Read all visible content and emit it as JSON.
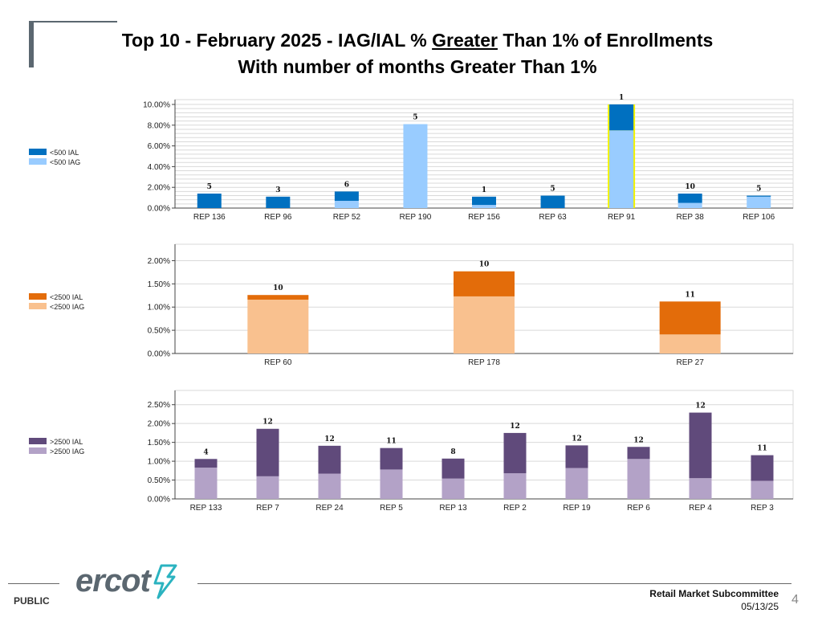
{
  "slide": {
    "title_line1_pre": "Top 10 - February 2025 - IAG/IAL % ",
    "title_line1_under": "Greater",
    "title_line1_post": " Than 1% of Enrollments",
    "title_line2": "With number of months Greater Than 1%",
    "footer_public": "PUBLIC",
    "logo_text": "ercot",
    "committee": "Retail Market Subcommittee",
    "date": "05/13/25",
    "page_number": "4"
  },
  "chart_data": [
    {
      "type": "bar",
      "stacked": true,
      "categories": [
        "REP 136",
        "REP 96",
        "REP 52",
        "REP 190",
        "REP 156",
        "REP 63",
        "REP 91",
        "REP 38",
        "REP 106"
      ],
      "series": [
        {
          "name": "<500 IAG",
          "color": "#99ccff",
          "values": [
            0.0,
            0.0,
            0.7,
            8.1,
            0.3,
            0.0,
            7.5,
            0.5,
            1.1
          ]
        },
        {
          "name": "<500 IAL",
          "color": "#0070c0",
          "values": [
            1.4,
            1.1,
            0.9,
            0.0,
            0.8,
            1.2,
            2.6,
            0.9,
            0.1
          ]
        }
      ],
      "top_labels": [
        "5",
        "3",
        "6",
        "5",
        "1",
        "5",
        "1",
        "10",
        "5"
      ],
      "highlight_category": "REP 91",
      "highlight_color": "#f2f200",
      "legend": [
        "<500 IAL",
        "<500 IAG"
      ],
      "ylim": [
        0,
        10
      ],
      "yticks": [
        0,
        2,
        4,
        6,
        8,
        10
      ],
      "yticklabels": [
        "0.00%",
        "2.00%",
        "4.00%",
        "6.00%",
        "8.00%",
        "10.00%"
      ],
      "grid": "minor"
    },
    {
      "type": "bar",
      "stacked": true,
      "categories": [
        "REP 60",
        "REP 178",
        "REP 27"
      ],
      "series": [
        {
          "name": "<2500 IAG",
          "color": "#f9c18f",
          "values": [
            1.16,
            1.23,
            0.41
          ]
        },
        {
          "name": "<2500 IAL",
          "color": "#e36c0a",
          "values": [
            0.1,
            0.54,
            0.71
          ]
        }
      ],
      "top_labels": [
        "10",
        "10",
        "11"
      ],
      "legend": [
        "<2500 IAL",
        "<2500 IAG"
      ],
      "ylim": [
        0,
        2.25
      ],
      "yticks": [
        0,
        0.5,
        1,
        1.5,
        2
      ],
      "yticklabels": [
        "0.00%",
        "0.50%",
        "1.00%",
        "1.50%",
        "2.00%"
      ],
      "grid": "major"
    },
    {
      "type": "bar",
      "stacked": true,
      "categories": [
        "REP 133",
        "REP 7",
        "REP 24",
        "REP 5",
        "REP 13",
        "REP 2",
        "REP 19",
        "REP 6",
        "REP 4",
        "REP 3"
      ],
      "series": [
        {
          "name": ">2500 IAG",
          "color": "#b3a2c7",
          "values": [
            0.83,
            0.6,
            0.67,
            0.78,
            0.54,
            0.68,
            0.82,
            1.06,
            0.55,
            0.48
          ]
        },
        {
          "name": ">2500 IAL",
          "color": "#604a7b",
          "values": [
            0.23,
            1.26,
            0.74,
            0.57,
            0.53,
            1.07,
            0.6,
            0.32,
            1.74,
            0.68
          ]
        }
      ],
      "top_labels": [
        "4",
        "12",
        "12",
        "11",
        "8",
        "12",
        "12",
        "12",
        "12",
        "11"
      ],
      "legend": [
        ">2500 IAL",
        ">2500 IAG"
      ],
      "ylim": [
        0,
        2.75
      ],
      "yticks": [
        0,
        0.5,
        1,
        1.5,
        2,
        2.5
      ],
      "yticklabels": [
        "0.00%",
        "0.50%",
        "1.00%",
        "1.50%",
        "2.00%",
        "2.50%"
      ],
      "grid": "major"
    }
  ]
}
